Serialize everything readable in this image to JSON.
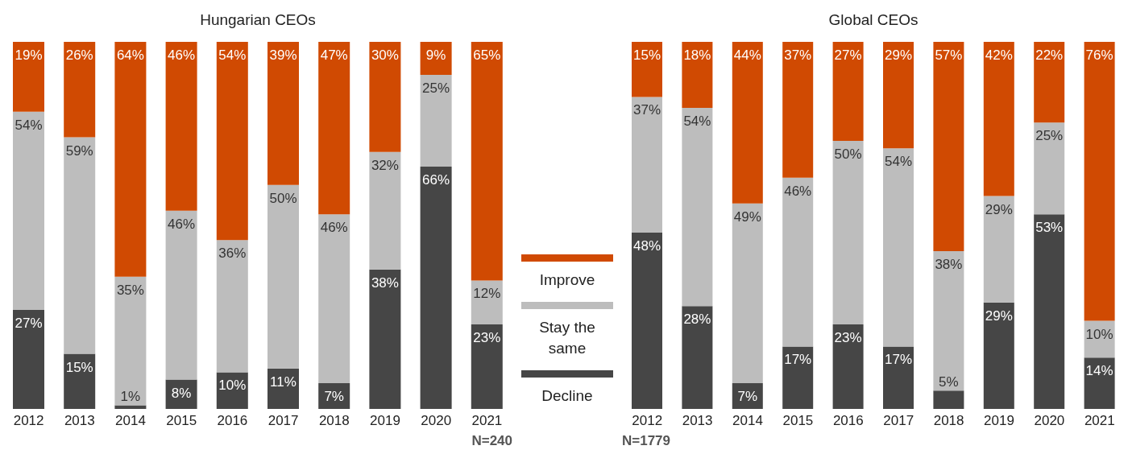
{
  "chart_data": [
    {
      "type": "bar",
      "title": "Hungarian CEOs",
      "stacked": true,
      "legend": "right",
      "annotations": [
        "N=240"
      ],
      "categories": [
        "2012",
        "2013",
        "2014",
        "2015",
        "2016",
        "2017",
        "2018",
        "2019",
        "2020",
        "2021"
      ],
      "series": [
        {
          "name": "Decline",
          "color": "#464646",
          "values": [
            27,
            15,
            1,
            8,
            10,
            11,
            7,
            38,
            66,
            23
          ],
          "value_labels": [
            "27%",
            "15%",
            "1%",
            "8%",
            "10%",
            "11%",
            "7%",
            "38%",
            "66%",
            "23%"
          ]
        },
        {
          "name": "Stay the same",
          "color": "#bdbdbd",
          "values": [
            54,
            59,
            35,
            46,
            36,
            50,
            46,
            32,
            25,
            12
          ],
          "value_labels": [
            "54%",
            "59%",
            "35%",
            "46%",
            "36%",
            "50%",
            "46%",
            "32%",
            "25%",
            "12%"
          ]
        },
        {
          "name": "Improve",
          "color": "#d04a02",
          "values": [
            19,
            26,
            64,
            46,
            54,
            39,
            47,
            30,
            9,
            65
          ],
          "value_labels": [
            "19%",
            "26%",
            "64%",
            "46%",
            "54%",
            "39%",
            "47%",
            "30%",
            "9%",
            "65%"
          ]
        }
      ]
    },
    {
      "type": "bar",
      "title": "Global CEOs",
      "stacked": true,
      "annotations": [
        "N=1779"
      ],
      "categories": [
        "2012",
        "2013",
        "2014",
        "2015",
        "2016",
        "2017",
        "2018",
        "2019",
        "2020",
        "2021"
      ],
      "series": [
        {
          "color": "#464646",
          "values": [
            48,
            28,
            7,
            17,
            23,
            17,
            5,
            29,
            53,
            14
          ],
          "value_labels": [
            "48%",
            "28%",
            "7%",
            "17%",
            "23%",
            "17%",
            "5%",
            "29%",
            "53%",
            "14%"
          ]
        },
        {
          "color": "#bdbdbd",
          "values": [
            37,
            54,
            49,
            46,
            50,
            54,
            38,
            29,
            25,
            10
          ],
          "value_labels": [
            "37%",
            "54%",
            "49%",
            "46%",
            "50%",
            "54%",
            "38%",
            "29%",
            "25%",
            "10%"
          ]
        },
        {
          "color": "#d04a02",
          "values": [
            15,
            18,
            44,
            37,
            27,
            29,
            57,
            42,
            22,
            76
          ],
          "value_labels": [
            "15%",
            "18%",
            "44%",
            "37%",
            "27%",
            "29%",
            "57%",
            "42%",
            "22%",
            "76%"
          ]
        }
      ]
    }
  ]
}
